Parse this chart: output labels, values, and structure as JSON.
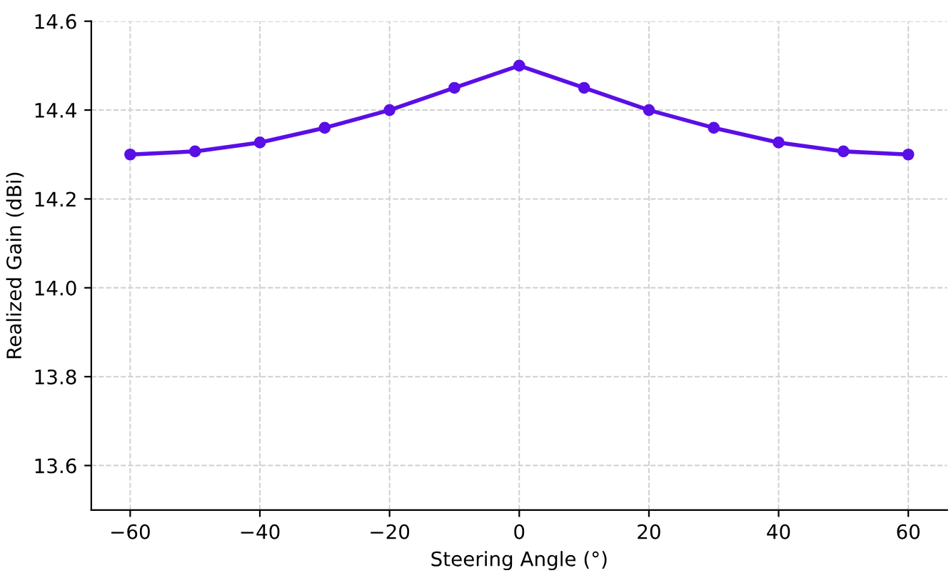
{
  "chart_data": {
    "type": "line",
    "xlabel": "Steering Angle (°)",
    "ylabel": "Realized Gain (dBi)",
    "x": [
      -60,
      -50,
      -40,
      -30,
      -20,
      -10,
      0,
      10,
      20,
      30,
      40,
      50,
      60
    ],
    "series": [
      {
        "color": "#5a0fe6",
        "values": [
          14.3,
          14.307,
          14.327,
          14.36,
          14.4,
          14.45,
          14.5,
          14.45,
          14.4,
          14.36,
          14.327,
          14.307,
          14.3
        ]
      }
    ],
    "xlim": [
      -66,
      66
    ],
    "ylim": [
      13.5,
      14.6
    ],
    "xticks": [
      {
        "value": -60,
        "label": "−60"
      },
      {
        "value": -40,
        "label": "−40"
      },
      {
        "value": -20,
        "label": "−20"
      },
      0,
      20,
      40,
      60
    ],
    "yticks": [
      {
        "value": 13.6,
        "label": "13.6"
      },
      {
        "value": 13.8,
        "label": "13.8"
      },
      {
        "value": 14.0,
        "label": "14.0"
      },
      {
        "value": 14.2,
        "label": "14.2"
      },
      {
        "value": 14.4,
        "label": "14.4"
      },
      {
        "value": 14.6,
        "label": "14.6"
      }
    ],
    "grid": true,
    "marker": "circle",
    "line_style": "solid",
    "legend": false
  }
}
